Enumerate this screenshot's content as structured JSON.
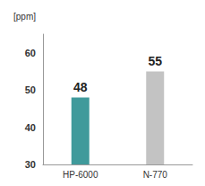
{
  "chart_data": {
    "type": "bar",
    "ylabel": "[ppm]",
    "categories": [
      "HP-6000",
      "N-770"
    ],
    "values": [
      48,
      55
    ],
    "colors": [
      "#3f9a9b",
      "#c3c3c3"
    ],
    "ylim": [
      30,
      65
    ],
    "yticks": [
      30,
      40,
      50,
      60
    ],
    "grid": false,
    "data_labels": true
  }
}
